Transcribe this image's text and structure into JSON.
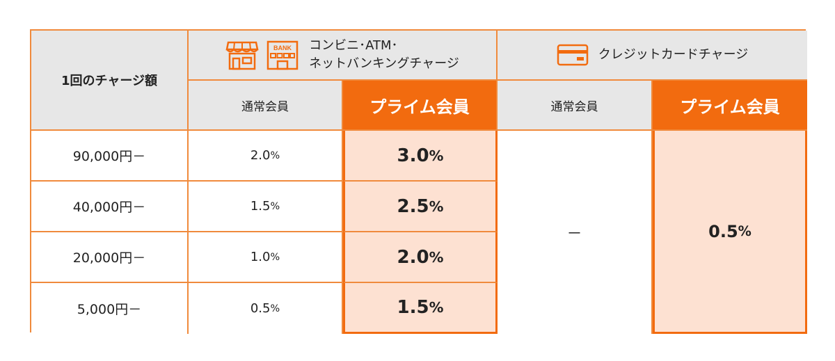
{
  "table": {
    "row_header_label": "1回のチャージ額",
    "group1": {
      "title_line1": "コンビニ･ATM･",
      "title_line2": "ネットバンキングチャージ",
      "bank_sign": "BANK",
      "regular": "通常会員",
      "prime": "プライム会員"
    },
    "group2": {
      "title": "クレジットカードチャージ",
      "regular": "通常会員",
      "prime": "プライム会員",
      "regular_value": "－",
      "prime_value": "0.5",
      "prime_value_unit": "%"
    },
    "rows": [
      {
        "amount": "90,000円－",
        "regular": "2.0",
        "prime": "3.0",
        "unit": "%"
      },
      {
        "amount": "40,000円－",
        "regular": "1.5",
        "prime": "2.5",
        "unit": "%"
      },
      {
        "amount": "20,000円－",
        "regular": "1.0",
        "prime": "2.0",
        "unit": "%"
      },
      {
        "amount": "5,000円－",
        "regular": "0.5",
        "prime": "1.5",
        "unit": "%"
      }
    ]
  },
  "colors": {
    "orange": "#f26b0f",
    "border": "#f08a3c",
    "peach": "#fde1d2",
    "gray": "#e7e7e7"
  },
  "icons": [
    "store-icon",
    "bank-icon",
    "credit-card-icon"
  ]
}
